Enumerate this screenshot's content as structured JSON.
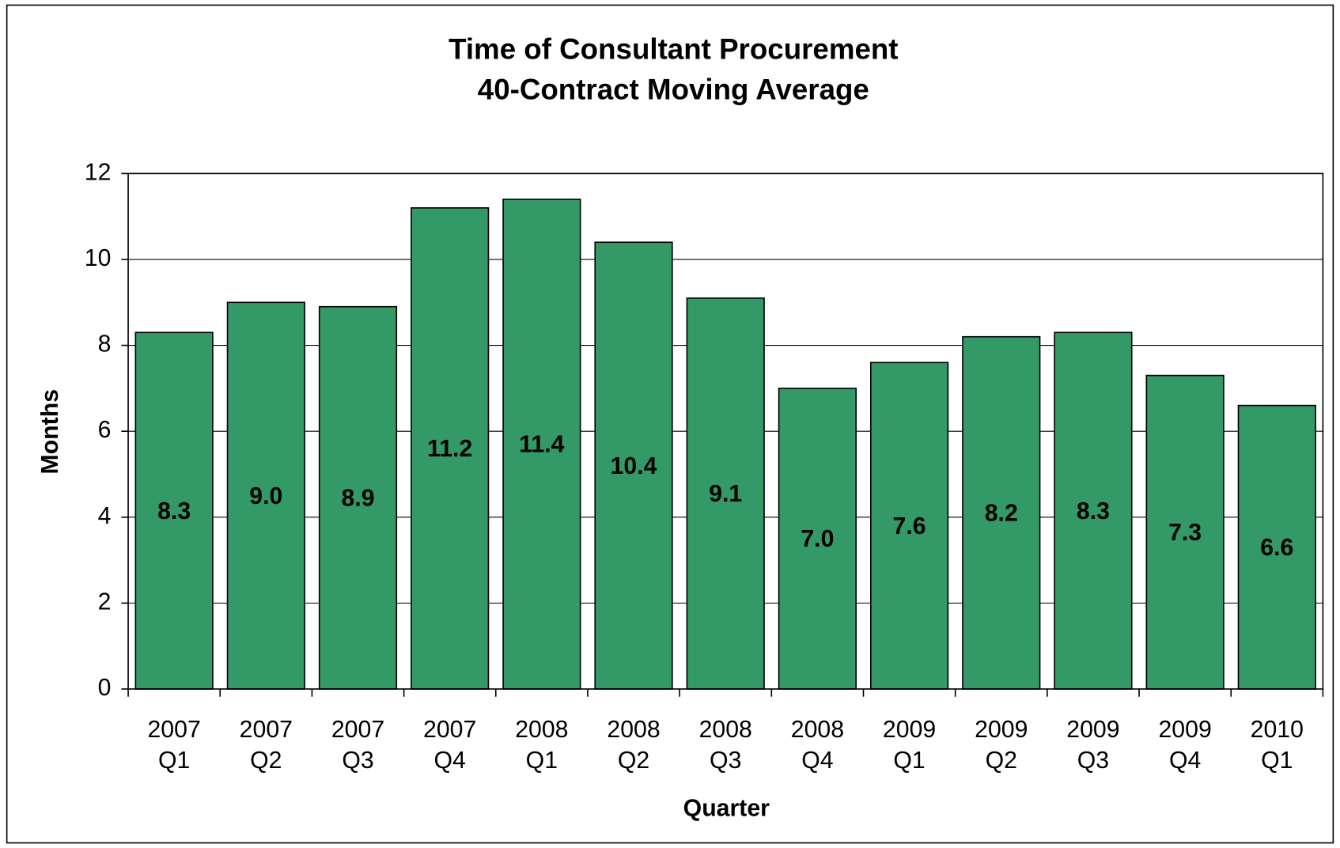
{
  "chart_data": {
    "type": "bar",
    "title": "Time of Consultant Procurement",
    "subtitle": "40-Contract Moving Average",
    "x_label": "Quarter",
    "y_label": "Months",
    "categories": [
      [
        "2007",
        "Q1"
      ],
      [
        "2007",
        "Q2"
      ],
      [
        "2007",
        "Q3"
      ],
      [
        "2007",
        "Q4"
      ],
      [
        "2008",
        "Q1"
      ],
      [
        "2008",
        "Q2"
      ],
      [
        "2008",
        "Q3"
      ],
      [
        "2008",
        "Q4"
      ],
      [
        "2009",
        "Q1"
      ],
      [
        "2009",
        "Q2"
      ],
      [
        "2009",
        "Q3"
      ],
      [
        "2009",
        "Q4"
      ],
      [
        "2010",
        "Q1"
      ]
    ],
    "values": [
      8.3,
      9.0,
      8.9,
      11.2,
      11.4,
      10.4,
      9.1,
      7.0,
      7.6,
      8.2,
      8.3,
      7.3,
      6.6
    ],
    "value_labels": [
      "8.3",
      "9.0",
      "8.9",
      "11.2",
      "11.4",
      "10.4",
      "9.1",
      "7.0",
      "7.6",
      "8.2",
      "8.3",
      "7.3",
      "6.6"
    ],
    "color": "#339966",
    "ylim": [
      0,
      12
    ],
    "yticks": [
      0,
      2,
      4,
      6,
      8,
      10,
      12
    ],
    "grid": true
  }
}
